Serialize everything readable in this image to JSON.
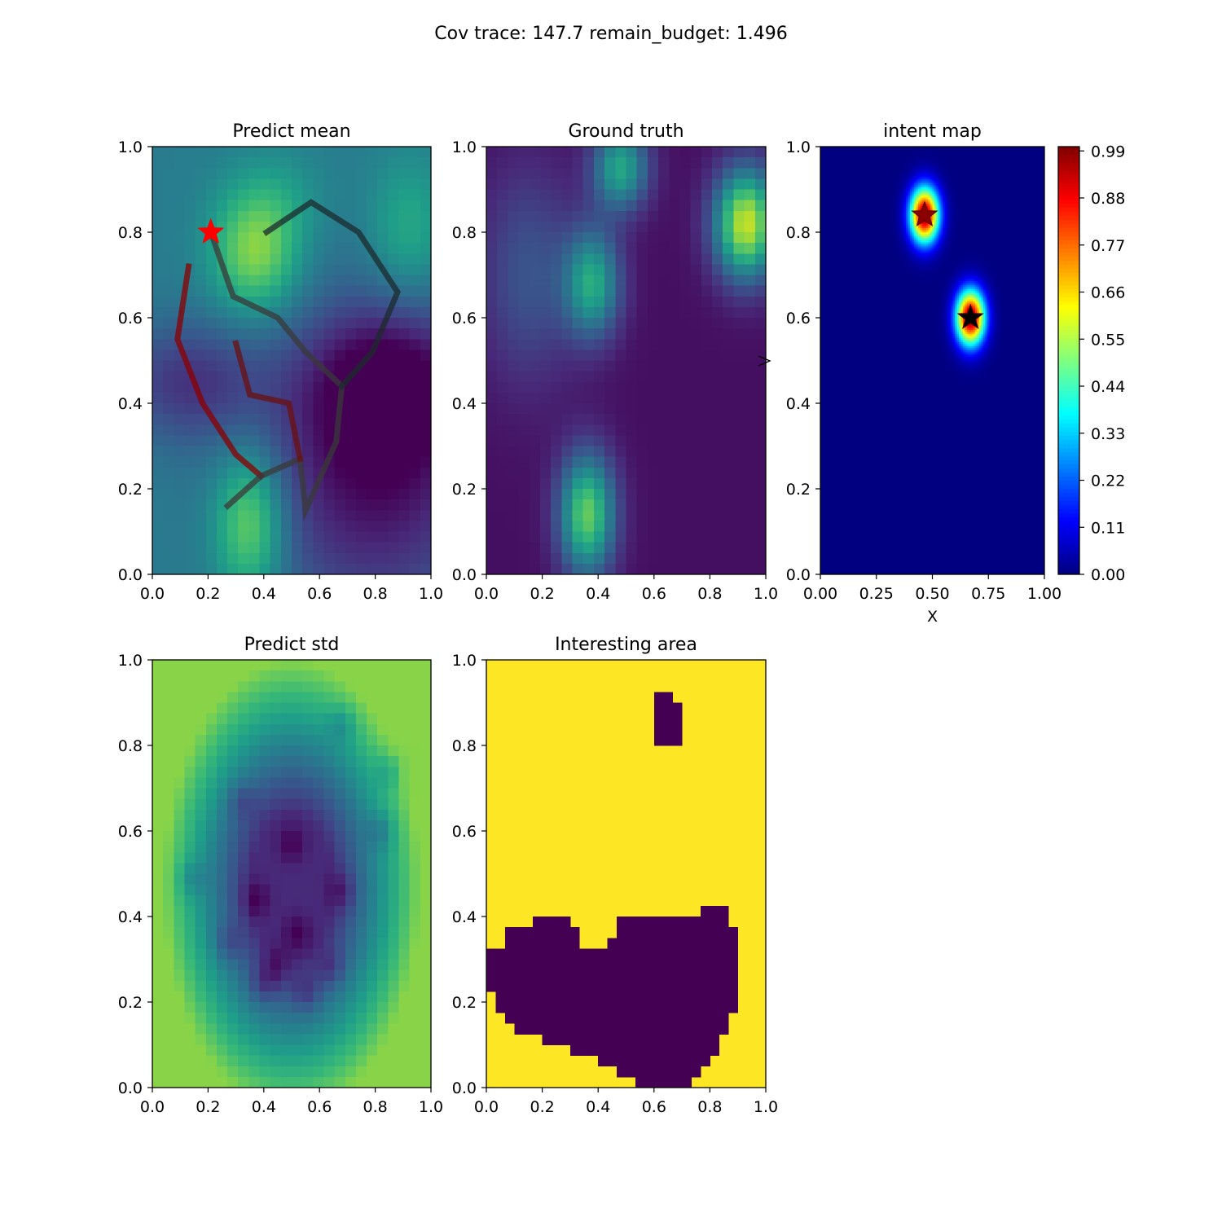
{
  "figure": {
    "suptitle": "Cov trace: 147.7  remain_budget: 1.496"
  },
  "chart_data": [
    {
      "id": "predict_mean",
      "type": "heatmap",
      "title": "Predict mean",
      "xlim": [
        0,
        1
      ],
      "ylim": [
        0,
        1
      ],
      "xticks": [
        "0.0",
        "0.2",
        "0.4",
        "0.6",
        "0.8",
        "1.0"
      ],
      "yticks": [
        "0.0",
        "0.2",
        "0.4",
        "0.6",
        "0.8",
        "1.0"
      ],
      "colormap": "viridis",
      "field": {
        "bias": 0.42,
        "bumps": [
          {
            "x": 0.35,
            "y": 0.12,
            "a": 0.42,
            "sx": 0.09,
            "sy": 0.12
          },
          {
            "x": 0.37,
            "y": 0.75,
            "a": 0.4,
            "sx": 0.11,
            "sy": 0.1
          },
          {
            "x": 0.92,
            "y": 0.8,
            "a": 0.2,
            "sx": 0.1,
            "sy": 0.12
          },
          {
            "x": 0.45,
            "y": 0.88,
            "a": 0.1,
            "sx": 0.12,
            "sy": 0.08
          },
          {
            "x": 0.12,
            "y": 0.45,
            "a": -0.25,
            "sx": 0.18,
            "sy": 0.1
          },
          {
            "x": 0.8,
            "y": 0.25,
            "a": -0.4,
            "sx": 0.3,
            "sy": 0.25
          },
          {
            "x": 0.85,
            "y": 0.45,
            "a": -0.3,
            "sx": 0.2,
            "sy": 0.12
          }
        ]
      },
      "paths": [
        {
          "color": "#8b0000",
          "points": [
            [
              0.13,
              0.72
            ],
            [
              0.09,
              0.55
            ],
            [
              0.18,
              0.4
            ],
            [
              0.3,
              0.28
            ],
            [
              0.39,
              0.23
            ]
          ]
        },
        {
          "color": "#3a3a3a",
          "points": [
            [
              0.27,
              0.16
            ],
            [
              0.39,
              0.23
            ],
            [
              0.53,
              0.27
            ],
            [
              0.55,
              0.15
            ],
            [
              0.66,
              0.31
            ],
            [
              0.68,
              0.44
            ],
            [
              0.55,
              0.52
            ],
            [
              0.45,
              0.6
            ],
            [
              0.29,
              0.65
            ],
            [
              0.21,
              0.8
            ]
          ]
        },
        {
          "color": "#6b1010",
          "points": [
            [
              0.3,
              0.54
            ],
            [
              0.35,
              0.42
            ],
            [
              0.49,
              0.4
            ],
            [
              0.53,
              0.27
            ]
          ]
        },
        {
          "color": "#1c2b2e",
          "points": [
            [
              0.41,
              0.8
            ],
            [
              0.57,
              0.87
            ],
            [
              0.74,
              0.8
            ],
            [
              0.88,
              0.66
            ],
            [
              0.79,
              0.52
            ],
            [
              0.68,
              0.44
            ]
          ]
        }
      ],
      "markers": [
        {
          "x": 0.21,
          "y": 0.8,
          "shape": "star",
          "color": "#ff0000"
        }
      ]
    },
    {
      "id": "ground_truth",
      "type": "heatmap",
      "title": "Ground truth",
      "xlim": [
        0,
        1
      ],
      "ylim": [
        0,
        1
      ],
      "xticks": [
        "0.0",
        "0.2",
        "0.4",
        "0.6",
        "0.8",
        "1.0"
      ],
      "yticks": [
        "0.0",
        "0.2",
        "0.4",
        "0.6",
        "0.8",
        "1.0"
      ],
      "colormap": "viridis",
      "field": {
        "bias": 0.04,
        "bumps": [
          {
            "x": 0.36,
            "y": 0.14,
            "a": 0.72,
            "sx": 0.07,
            "sy": 0.1
          },
          {
            "x": 0.38,
            "y": 0.68,
            "a": 0.55,
            "sx": 0.07,
            "sy": 0.09
          },
          {
            "x": 0.93,
            "y": 0.82,
            "a": 0.88,
            "sx": 0.08,
            "sy": 0.09
          },
          {
            "x": 0.48,
            "y": 0.95,
            "a": 0.55,
            "sx": 0.07,
            "sy": 0.07
          },
          {
            "x": 0.15,
            "y": 0.7,
            "a": 0.22,
            "sx": 0.12,
            "sy": 0.18
          }
        ]
      }
    },
    {
      "id": "intent_map",
      "type": "heatmap",
      "title": "intent map",
      "xlabel": "X",
      "xlim": [
        0,
        1
      ],
      "ylim": [
        0,
        1
      ],
      "xticks": [
        "0.00",
        "0.25",
        "0.50",
        "0.75",
        "1.00"
      ],
      "yticks": [
        "0.0",
        "0.2",
        "0.4",
        "0.6",
        "0.8",
        "1.0"
      ],
      "colormap": "jet",
      "field": {
        "bias": 0.0,
        "bumps": [
          {
            "x": 0.465,
            "y": 0.84,
            "a": 1.0,
            "sx": 0.045,
            "sy": 0.045
          },
          {
            "x": 0.67,
            "y": 0.6,
            "a": 1.0,
            "sx": 0.045,
            "sy": 0.045
          }
        ]
      },
      "markers": [
        {
          "x": 0.465,
          "y": 0.84,
          "shape": "star",
          "color": "#8b0000"
        },
        {
          "x": 0.67,
          "y": 0.6,
          "shape": "star",
          "color": "#000000"
        }
      ],
      "colorbar": {
        "ticks": [
          "0.99",
          "0.88",
          "0.77",
          "0.66",
          "0.55",
          "0.44",
          "0.33",
          "0.22",
          "0.11",
          "0.00"
        ],
        "range": [
          0,
          1
        ]
      }
    },
    {
      "id": "predict_std",
      "type": "heatmap",
      "title": "Predict std",
      "xlim": [
        0,
        1
      ],
      "ylim": [
        0,
        1
      ],
      "xticks": [
        "0.0",
        "0.2",
        "0.4",
        "0.6",
        "0.8",
        "1.0"
      ],
      "yticks": [
        "0.0",
        "0.2",
        "0.4",
        "0.6",
        "0.8",
        "1.0"
      ],
      "colormap": "viridis",
      "field": {
        "mode": "std",
        "center": [
          0.5,
          0.47
        ],
        "radius": [
          0.42,
          0.48
        ],
        "low": 0.12,
        "high": 0.82,
        "dips": [
          [
            0.68,
            0.85
          ],
          [
            0.85,
            0.74
          ],
          [
            0.82,
            0.6
          ],
          [
            0.32,
            0.67
          ],
          [
            0.5,
            0.57
          ],
          [
            0.14,
            0.49
          ],
          [
            0.37,
            0.44
          ],
          [
            0.68,
            0.46
          ],
          [
            0.52,
            0.36
          ],
          [
            0.27,
            0.34
          ],
          [
            0.4,
            0.24
          ],
          [
            0.55,
            0.22
          ],
          [
            0.64,
            0.28
          ],
          [
            0.44,
            0.28
          ]
        ]
      }
    },
    {
      "id": "interesting_area",
      "type": "heatmap",
      "title": "Interesting area",
      "xlim": [
        0,
        1
      ],
      "ylim": [
        0,
        1
      ],
      "xticks": [
        "0.0",
        "0.2",
        "0.4",
        "0.6",
        "0.8",
        "1.0"
      ],
      "yticks": [
        "0.0",
        "0.2",
        "0.4",
        "0.6",
        "0.8",
        "1.0"
      ],
      "colormap": "binary-viridis",
      "grid_cols": 30,
      "grid_rows": 40,
      "masked_row_spans": {
        "3": [
          [
            18,
            19
          ]
        ],
        "4": [
          [
            18,
            20
          ]
        ],
        "5": [
          [
            18,
            20
          ]
        ],
        "6": [
          [
            18,
            20
          ]
        ],
        "7": [
          [
            18,
            20
          ]
        ],
        "23": [
          [
            23,
            25
          ]
        ],
        "24": [
          [
            5,
            8
          ],
          [
            14,
            25
          ]
        ],
        "25": [
          [
            2,
            9
          ],
          [
            14,
            26
          ]
        ],
        "26": [
          [
            2,
            9
          ],
          [
            13,
            26
          ]
        ],
        "27": [
          [
            0,
            26
          ]
        ],
        "28": [
          [
            0,
            26
          ]
        ],
        "29": [
          [
            0,
            26
          ]
        ],
        "30": [
          [
            0,
            26
          ]
        ],
        "31": [
          [
            1,
            26
          ]
        ],
        "32": [
          [
            1,
            26
          ]
        ],
        "33": [
          [
            2,
            25
          ]
        ],
        "34": [
          [
            3,
            25
          ]
        ],
        "35": [
          [
            6,
            24
          ]
        ],
        "36": [
          [
            9,
            24
          ]
        ],
        "37": [
          [
            12,
            23
          ]
        ],
        "38": [
          [
            14,
            22
          ]
        ],
        "39": [
          [
            16,
            21
          ]
        ]
      }
    }
  ]
}
